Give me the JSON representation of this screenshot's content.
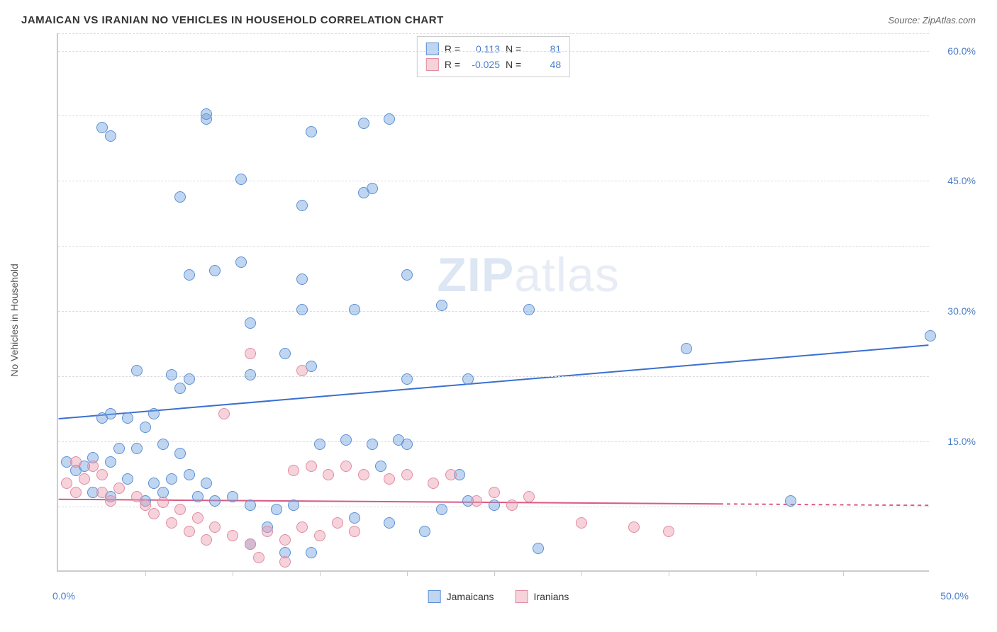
{
  "title": "JAMAICAN VS IRANIAN NO VEHICLES IN HOUSEHOLD CORRELATION CHART",
  "source_label": "Source: ZipAtlas.com",
  "watermark": {
    "zip": "ZIP",
    "atlas": "atlas"
  },
  "y_axis_label": "No Vehicles in Household",
  "chart": {
    "type": "scatter",
    "xlim": [
      0,
      50
    ],
    "ylim": [
      0,
      62
    ],
    "x_min_label": "0.0%",
    "x_max_label": "50.0%",
    "y_ticks": [
      {
        "value": 15,
        "label": "15.0%"
      },
      {
        "value": 30,
        "label": "30.0%"
      },
      {
        "value": 45,
        "label": "45.0%"
      },
      {
        "value": 60,
        "label": "60.0%"
      }
    ],
    "extra_gridlines": [
      62,
      52.5,
      37.5,
      22.5,
      7.5
    ],
    "x_tick_positions": [
      5,
      10,
      15,
      20,
      25,
      30,
      35,
      40,
      45
    ],
    "background_color": "#ffffff",
    "grid_color": "#dddddd",
    "axis_color": "#cccccc",
    "marker_radius": 8,
    "series": [
      {
        "name": "Jamaicans",
        "fill_color": "rgba(115,163,222,0.45)",
        "stroke_color": "#5b8fd6",
        "trend": {
          "y_at_x0": 17.5,
          "y_at_xmax": 26.0,
          "color": "#3b6fd1",
          "width": 2
        },
        "R": "0.113",
        "N": "81",
        "points": [
          [
            3.0,
            50.0
          ],
          [
            8.5,
            52.0
          ],
          [
            7.0,
            43.0
          ],
          [
            10.5,
            45.0
          ],
          [
            14.0,
            42.0
          ],
          [
            17.5,
            43.5
          ],
          [
            18.0,
            44.0
          ],
          [
            9.0,
            34.5
          ],
          [
            10.5,
            35.5
          ],
          [
            7.5,
            34.0
          ],
          [
            11.0,
            28.5
          ],
          [
            14.0,
            33.5
          ],
          [
            14.0,
            30.0
          ],
          [
            17.0,
            30.0
          ],
          [
            20.0,
            34.0
          ],
          [
            22.0,
            30.5
          ],
          [
            13.0,
            25.0
          ],
          [
            14.5,
            23.5
          ],
          [
            4.5,
            23.0
          ],
          [
            6.5,
            22.5
          ],
          [
            7.0,
            21.0
          ],
          [
            7.5,
            22.0
          ],
          [
            11.0,
            22.5
          ],
          [
            20.0,
            22.0
          ],
          [
            23.5,
            22.0
          ],
          [
            27.0,
            30.0
          ],
          [
            36.0,
            25.5
          ],
          [
            50.0,
            27.0
          ],
          [
            3.0,
            18.0
          ],
          [
            4.0,
            17.5
          ],
          [
            2.5,
            17.5
          ],
          [
            5.0,
            16.5
          ],
          [
            5.5,
            18.0
          ],
          [
            3.5,
            14.0
          ],
          [
            4.5,
            14.0
          ],
          [
            6.0,
            14.5
          ],
          [
            7.0,
            13.5
          ],
          [
            2.0,
            13.0
          ],
          [
            3.0,
            12.5
          ],
          [
            0.5,
            12.5
          ],
          [
            1.0,
            11.5
          ],
          [
            1.5,
            12.0
          ],
          [
            4.0,
            10.5
          ],
          [
            5.5,
            10.0
          ],
          [
            6.5,
            10.5
          ],
          [
            7.5,
            11.0
          ],
          [
            8.5,
            10.0
          ],
          [
            2.0,
            9.0
          ],
          [
            3.0,
            8.5
          ],
          [
            5.0,
            8.0
          ],
          [
            6.0,
            9.0
          ],
          [
            8.0,
            8.5
          ],
          [
            9.0,
            8.0
          ],
          [
            10.0,
            8.5
          ],
          [
            11.0,
            7.5
          ],
          [
            12.5,
            7.0
          ],
          [
            13.5,
            7.5
          ],
          [
            12.0,
            5.0
          ],
          [
            15.0,
            14.5
          ],
          [
            16.5,
            15.0
          ],
          [
            18.0,
            14.5
          ],
          [
            19.5,
            15.0
          ],
          [
            21.0,
            4.5
          ],
          [
            19.0,
            5.5
          ],
          [
            17.0,
            6.0
          ],
          [
            20.0,
            14.5
          ],
          [
            18.5,
            12.0
          ],
          [
            23.0,
            11.0
          ],
          [
            22.0,
            7.0
          ],
          [
            23.5,
            8.0
          ],
          [
            25.0,
            7.5
          ],
          [
            27.5,
            2.5
          ],
          [
            13.0,
            2.0
          ],
          [
            14.5,
            2.0
          ],
          [
            11.0,
            3.0
          ],
          [
            42.0,
            8.0
          ],
          [
            2.5,
            51.0
          ],
          [
            19.0,
            52.0
          ],
          [
            17.5,
            51.5
          ],
          [
            8.5,
            52.5
          ],
          [
            14.5,
            50.5
          ]
        ]
      },
      {
        "name": "Iranians",
        "fill_color": "rgba(235,155,175,0.45)",
        "stroke_color": "#e18ca3",
        "trend": {
          "y_at_x0": 8.2,
          "y_at_xmax": 7.5,
          "color": "#d95a82",
          "width": 2,
          "dash_after_x": 38
        },
        "R": "-0.025",
        "N": "48",
        "points": [
          [
            11.0,
            25.0
          ],
          [
            14.0,
            23.0
          ],
          [
            9.5,
            18.0
          ],
          [
            1.0,
            12.5
          ],
          [
            2.0,
            12.0
          ],
          [
            2.5,
            11.0
          ],
          [
            0.5,
            10.0
          ],
          [
            1.5,
            10.5
          ],
          [
            1.0,
            9.0
          ],
          [
            2.5,
            9.0
          ],
          [
            3.5,
            9.5
          ],
          [
            3.0,
            8.0
          ],
          [
            4.5,
            8.5
          ],
          [
            5.0,
            7.5
          ],
          [
            6.0,
            7.8
          ],
          [
            5.5,
            6.5
          ],
          [
            7.0,
            7.0
          ],
          [
            6.5,
            5.5
          ],
          [
            8.0,
            6.0
          ],
          [
            7.5,
            4.5
          ],
          [
            9.0,
            5.0
          ],
          [
            8.5,
            3.5
          ],
          [
            10.0,
            4.0
          ],
          [
            11.0,
            3.0
          ],
          [
            12.0,
            4.5
          ],
          [
            13.0,
            3.5
          ],
          [
            14.0,
            5.0
          ],
          [
            15.0,
            4.0
          ],
          [
            16.0,
            5.5
          ],
          [
            17.0,
            4.5
          ],
          [
            13.5,
            11.5
          ],
          [
            14.5,
            12.0
          ],
          [
            15.5,
            11.0
          ],
          [
            16.5,
            12.0
          ],
          [
            17.5,
            11.0
          ],
          [
            19.0,
            10.5
          ],
          [
            20.0,
            11.0
          ],
          [
            21.5,
            10.0
          ],
          [
            22.5,
            11.0
          ],
          [
            24.0,
            8.0
          ],
          [
            25.0,
            9.0
          ],
          [
            26.0,
            7.5
          ],
          [
            27.0,
            8.5
          ],
          [
            30.0,
            5.5
          ],
          [
            33.0,
            5.0
          ],
          [
            35.0,
            4.5
          ],
          [
            11.5,
            1.5
          ],
          [
            13.0,
            1.0
          ]
        ]
      }
    ]
  },
  "legend_stats": {
    "r_label": "R =",
    "n_label": "N ="
  },
  "legend_bottom": {
    "series1_label": "Jamaicans",
    "series2_label": "Iranians"
  }
}
